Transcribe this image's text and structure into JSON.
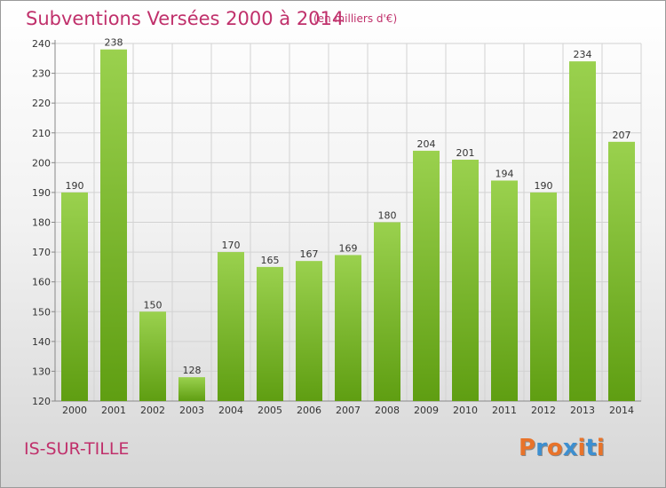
{
  "header": {
    "title": "Subventions Versées 2000 à 2014",
    "unit": "(en milliers d'€)"
  },
  "footer": {
    "place": "IS-SUR-TILLE",
    "logo_letters": [
      "P",
      "r",
      "o",
      "x",
      "i",
      "t",
      "i"
    ],
    "logo_colors": [
      "#e8732a",
      "#3d8fd0",
      "#e8732a",
      "#3d8fd0",
      "#e8732a",
      "#3d8fd0",
      "#e8732a"
    ]
  },
  "colors": {
    "bar_top": "#9ad14e",
    "bar_bottom": "#5f9e12",
    "title": "#c0306b"
  },
  "chart_data": {
    "type": "bar",
    "title": "Subventions Versées 2000 à 2014",
    "categories": [
      "2000",
      "2001",
      "2002",
      "2003",
      "2004",
      "2005",
      "2006",
      "2007",
      "2008",
      "2009",
      "2010",
      "2011",
      "2012",
      "2013",
      "2014"
    ],
    "values": [
      190,
      238,
      150,
      128,
      170,
      165,
      167,
      169,
      180,
      204,
      201,
      194,
      190,
      234,
      207
    ],
    "ylim": [
      120,
      240
    ],
    "yticks": [
      120,
      130,
      140,
      150,
      160,
      170,
      180,
      190,
      200,
      210,
      220,
      230,
      240
    ],
    "grid": true
  }
}
